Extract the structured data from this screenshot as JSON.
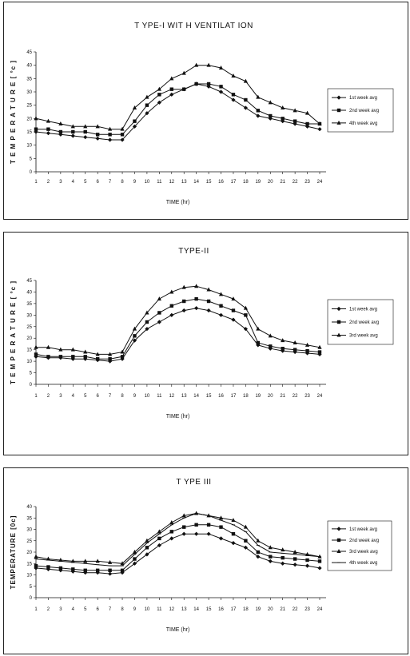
{
  "chart_data": [
    {
      "type": "line",
      "title": "T YPE-I WIT H VENTILAT ION",
      "xlabel": "TIME (hr)",
      "ylabel": "T E M P E R A T U R E [ °c ]",
      "x": [
        "1",
        "2",
        "3",
        "4",
        "5",
        "6",
        "7",
        "8",
        "9",
        "10",
        "11",
        "12",
        "13",
        "14",
        "15",
        "16",
        "17",
        "18",
        "19",
        "20",
        "21",
        "22",
        "23",
        "24"
      ],
      "xlim": [
        1,
        24
      ],
      "ylim": [
        0,
        45
      ],
      "yticks": [
        "0",
        "5",
        "10",
        "15",
        "20",
        "25",
        "30",
        "35",
        "40",
        "45"
      ],
      "legend_position": "right",
      "series": [
        {
          "name": "1st week avg",
          "marker": "diamond",
          "values": [
            15,
            14.5,
            14,
            13.5,
            13,
            12.5,
            12,
            12,
            17,
            22,
            26,
            29,
            31,
            33,
            32,
            30,
            27,
            24,
            21,
            20,
            19,
            18,
            17,
            16
          ]
        },
        {
          "name": "2nd week avg",
          "marker": "square",
          "values": [
            16,
            16,
            15,
            15,
            15,
            14,
            14,
            14,
            19,
            25,
            29,
            31,
            31,
            33,
            33,
            32,
            29,
            27,
            23,
            21,
            20,
            19,
            18,
            18
          ]
        },
        {
          "name": "4th week avg",
          "marker": "triangle",
          "values": [
            20,
            19,
            18,
            17,
            17,
            17,
            16,
            16,
            24,
            28,
            31,
            35,
            37,
            40,
            40,
            39,
            36,
            34,
            28,
            26,
            24,
            23,
            22,
            18
          ]
        }
      ]
    },
    {
      "type": "line",
      "title": "TYPE-II",
      "xlabel": "TIME (hr)",
      "ylabel": "T E M P E R A T U R E [ °c ]",
      "x": [
        "1",
        "2",
        "3",
        "4",
        "5",
        "6",
        "7",
        "8",
        "9",
        "10",
        "11",
        "12",
        "13",
        "14",
        "15",
        "16",
        "17",
        "18",
        "19",
        "20",
        "21",
        "22",
        "23",
        "24"
      ],
      "xlim": [
        1,
        24
      ],
      "ylim": [
        0,
        45
      ],
      "yticks": [
        "0",
        "5",
        "10",
        "15",
        "20",
        "25",
        "30",
        "35",
        "40",
        "45"
      ],
      "legend_position": "right",
      "series": [
        {
          "name": "1st week avg",
          "marker": "diamond",
          "values": [
            12,
            11.5,
            11.5,
            11,
            11,
            10.5,
            10,
            11,
            19,
            24,
            27,
            30,
            32,
            33,
            32,
            30,
            28,
            24,
            17,
            15.5,
            14.5,
            14,
            13.5,
            13
          ]
        },
        {
          "name": "2nd week avg",
          "marker": "square",
          "values": [
            13,
            12,
            12,
            12,
            12,
            11,
            11,
            12,
            21,
            27,
            31,
            34,
            36,
            37,
            36,
            34,
            32,
            30,
            18,
            16.5,
            15.5,
            15,
            14.5,
            14
          ]
        },
        {
          "name": "3rd week avg",
          "marker": "triangle",
          "values": [
            16,
            16,
            15,
            15,
            14,
            13,
            13,
            14,
            24,
            31,
            37,
            40,
            42,
            42.5,
            41,
            39,
            37,
            33,
            24,
            21,
            19,
            18,
            17,
            16
          ]
        }
      ]
    },
    {
      "type": "line",
      "title": "T YPE III",
      "xlabel": "TIME (hr)",
      "ylabel": "TEMPERATURE [0c]",
      "x": [
        "1",
        "2",
        "3",
        "4",
        "5",
        "6",
        "7",
        "8",
        "9",
        "10",
        "11",
        "12",
        "13",
        "14",
        "15",
        "16",
        "17",
        "18",
        "19",
        "20",
        "21",
        "22",
        "23",
        "24"
      ],
      "xlim": [
        1,
        24
      ],
      "ylim": [
        0,
        40
      ],
      "yticks": [
        "0",
        "5",
        "10",
        "15",
        "20",
        "25",
        "30",
        "35",
        "40"
      ],
      "legend_position": "right",
      "series": [
        {
          "name": "1st week avg",
          "marker": "diamond",
          "values": [
            13,
            12.5,
            12,
            11.5,
            11,
            11,
            10.5,
            11,
            15,
            19,
            23,
            26,
            28,
            28,
            28,
            26,
            24,
            22,
            18,
            16,
            15,
            14.5,
            14,
            13
          ]
        },
        {
          "name": "2nd week avg",
          "marker": "square",
          "values": [
            14,
            13.5,
            13,
            12.5,
            12,
            12,
            12,
            12,
            17,
            22,
            26,
            29,
            31,
            32,
            32,
            31,
            28,
            25,
            20,
            18,
            17.5,
            17,
            16.5,
            16
          ]
        },
        {
          "name": "3rd week avg",
          "marker": "triangle",
          "values": [
            18,
            17,
            16.5,
            16,
            16,
            16,
            15.5,
            15,
            20,
            25,
            29,
            33,
            36,
            37,
            36,
            35,
            34,
            31,
            25,
            22,
            21,
            20,
            19,
            18
          ]
        },
        {
          "name": "4th week avg",
          "marker": "none",
          "values": [
            17,
            16.5,
            16,
            15.5,
            15,
            14.5,
            14,
            14,
            19,
            24,
            28,
            32,
            35,
            37,
            36,
            34,
            32,
            29,
            23,
            20,
            19.5,
            19,
            18.5,
            18
          ]
        }
      ]
    }
  ]
}
